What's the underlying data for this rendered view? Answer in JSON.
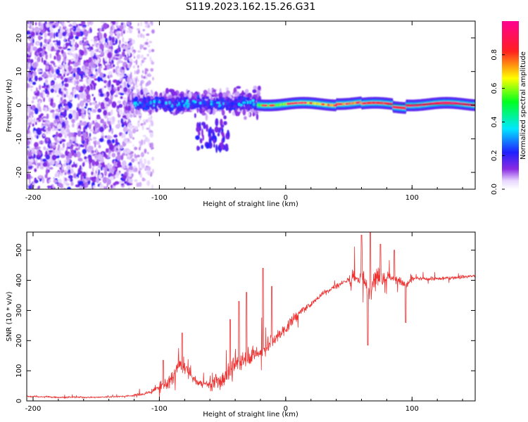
{
  "title": "S119.2023.162.15.26.G31",
  "chart_data": [
    {
      "type": "heatmap",
      "xlabel": "Height of straight line (km)",
      "ylabel": "Frequency (Hz)",
      "xlim": [
        -205,
        150
      ],
      "ylim": [
        -25,
        25
      ],
      "xticks": [
        -200,
        -100,
        0,
        100
      ],
      "yticks": [
        -20,
        -10,
        0,
        10,
        20
      ],
      "colorbar": {
        "label": "Normalized spectral amplitude",
        "range": [
          0.0,
          1.0
        ],
        "ticks": [
          0.0,
          0.2,
          0.4,
          0.6,
          0.8
        ],
        "tick_labels": [
          "0.0",
          "0.2",
          "0.4",
          "0.6",
          "0.8"
        ],
        "colormap": "white-violet-blue-cyan-green-yellow-red-magenta"
      },
      "regions": [
        {
          "x_from": -205,
          "x_to": -122,
          "freq_from": -25,
          "freq_to": 25,
          "amplitude": "0.05-0.25"
        },
        {
          "x_from": -122,
          "x_to": -20,
          "freq_from": -14,
          "freq_to": 10,
          "amplitude": "0.1-0.35"
        },
        {
          "x_from": -20,
          "x_to": 150,
          "freq_from": -1.5,
          "freq_to": 1.5,
          "amplitude": "0.35-1.0"
        }
      ]
    },
    {
      "type": "line",
      "xlabel": "Height of straight line (km)",
      "ylabel": "SNR (10 * v/v)",
      "xlim": [
        -205,
        150
      ],
      "ylim": [
        0,
        560
      ],
      "xticks": [
        -200,
        -100,
        0,
        100
      ],
      "yticks": [
        0,
        100,
        200,
        300,
        400,
        500
      ],
      "color": "#ee3333",
      "x": [
        -205,
        -180,
        -150,
        -130,
        -120,
        -110,
        -100,
        -90,
        -85,
        -80,
        -70,
        -60,
        -50,
        -40,
        -30,
        -20,
        -10,
        0,
        10,
        20,
        30,
        40,
        50,
        55,
        60,
        65,
        70,
        80,
        90,
        95,
        100,
        120,
        150
      ],
      "y": [
        15,
        12,
        12,
        15,
        18,
        25,
        45,
        70,
        120,
        110,
        60,
        55,
        70,
        120,
        150,
        160,
        200,
        240,
        290,
        320,
        360,
        380,
        405,
        400,
        420,
        360,
        410,
        415,
        400,
        380,
        405,
        405,
        415
      ],
      "spikes": [
        {
          "x": -97,
          "y": 135
        },
        {
          "x": -82,
          "y": 225
        },
        {
          "x": -44,
          "y": 270
        },
        {
          "x": -37,
          "y": 330
        },
        {
          "x": -31,
          "y": 360
        },
        {
          "x": -18,
          "y": 440
        },
        {
          "x": -11,
          "y": 380
        },
        {
          "x": 14,
          "y": 310
        },
        {
          "x": 60,
          "y": 550
        },
        {
          "x": 65,
          "y": 185
        },
        {
          "x": 67,
          "y": 565
        },
        {
          "x": 75,
          "y": 520
        },
        {
          "x": 86,
          "y": 500
        },
        {
          "x": 95,
          "y": 260
        }
      ]
    }
  ]
}
